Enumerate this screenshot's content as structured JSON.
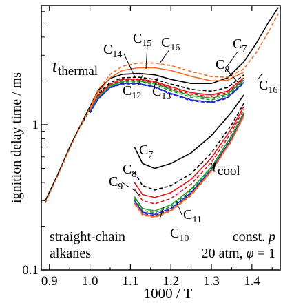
{
  "chart_data": {
    "type": "line",
    "xlabel": "1000 / T",
    "ylabel": "ignition delay time / ms",
    "xlim": [
      0.88,
      1.47
    ],
    "ylim": [
      0.1,
      6.6
    ],
    "yscale": "log",
    "x_ticks": [
      "0.9",
      "1.0",
      "1.1",
      "1.2",
      "1.3",
      "1.4"
    ],
    "y_ticks": [
      "0.1",
      "1"
    ],
    "grid": false,
    "annotations": {
      "thermal_label": "τ",
      "thermal_sub": "thermal",
      "cool_label": "τ",
      "cool_sub": "cool",
      "note_left_1": "straight-chain",
      "note_left_2": "alkanes",
      "note_right_1": "const. ",
      "note_right_1_var": "p",
      "note_right_2a": "20 atm, ",
      "note_right_2_phi": "φ",
      "note_right_2b": " = 1"
    },
    "series": [
      {
        "name": "C7",
        "color": "#000000",
        "dash": "solid",
        "thermal": [
          [
            0.89,
            0.3
          ],
          [
            0.92,
            0.45
          ],
          [
            0.95,
            0.7
          ],
          [
            0.98,
            1.03
          ],
          [
            1.0,
            1.33
          ],
          [
            1.02,
            1.72
          ],
          [
            1.05,
            2.08
          ],
          [
            1.08,
            2.22
          ],
          [
            1.12,
            2.25
          ],
          [
            1.16,
            2.2
          ],
          [
            1.2,
            2.05
          ],
          [
            1.25,
            1.92
          ],
          [
            1.3,
            1.92
          ],
          [
            1.34,
            2.1
          ],
          [
            1.38,
            2.7
          ],
          [
            1.41,
            3.6
          ],
          [
            1.44,
            5.0
          ],
          [
            1.465,
            6.4
          ]
        ],
        "cool": [
          [
            1.11,
            0.7
          ],
          [
            1.13,
            0.54
          ],
          [
            1.16,
            0.5
          ],
          [
            1.2,
            0.54
          ],
          [
            1.25,
            0.64
          ],
          [
            1.3,
            0.84
          ],
          [
            1.35,
            1.22
          ],
          [
            1.38,
            1.6
          ]
        ]
      },
      {
        "name": "C8",
        "color": "#000000",
        "dash": "dash",
        "thermal": [
          [
            0.97,
            0.9
          ],
          [
            1.0,
            1.27
          ],
          [
            1.02,
            1.62
          ],
          [
            1.05,
            1.95
          ],
          [
            1.08,
            2.1
          ],
          [
            1.12,
            2.12
          ],
          [
            1.16,
            2.05
          ],
          [
            1.2,
            1.9
          ],
          [
            1.25,
            1.75
          ],
          [
            1.3,
            1.7
          ],
          [
            1.34,
            1.8
          ],
          [
            1.38,
            2.2
          ]
        ],
        "cool": [
          [
            1.11,
            0.47
          ],
          [
            1.13,
            0.38
          ],
          [
            1.16,
            0.355
          ],
          [
            1.2,
            0.38
          ],
          [
            1.25,
            0.46
          ],
          [
            1.3,
            0.64
          ],
          [
            1.35,
            1.0
          ],
          [
            1.38,
            1.4
          ]
        ]
      },
      {
        "name": "C9",
        "color": "#e8121a",
        "dash": "solid",
        "thermal": [
          [
            1.0,
            1.25
          ],
          [
            1.02,
            1.58
          ],
          [
            1.05,
            1.9
          ],
          [
            1.08,
            2.05
          ],
          [
            1.12,
            2.06
          ],
          [
            1.16,
            1.98
          ],
          [
            1.2,
            1.82
          ],
          [
            1.25,
            1.66
          ],
          [
            1.3,
            1.6
          ],
          [
            1.34,
            1.7
          ],
          [
            1.38,
            2.1
          ]
        ],
        "cool": [
          [
            1.11,
            0.4
          ],
          [
            1.13,
            0.33
          ],
          [
            1.16,
            0.315
          ],
          [
            1.2,
            0.34
          ],
          [
            1.25,
            0.42
          ],
          [
            1.3,
            0.59
          ],
          [
            1.35,
            0.94
          ],
          [
            1.38,
            1.33
          ]
        ]
      },
      {
        "name": "C10",
        "color": "#e8121a",
        "dash": "dash",
        "thermal": [
          [
            1.0,
            1.24
          ],
          [
            1.02,
            1.56
          ],
          [
            1.05,
            1.88
          ],
          [
            1.08,
            2.02
          ],
          [
            1.12,
            2.03
          ],
          [
            1.16,
            1.95
          ],
          [
            1.2,
            1.78
          ],
          [
            1.25,
            1.62
          ],
          [
            1.3,
            1.56
          ],
          [
            1.34,
            1.66
          ],
          [
            1.38,
            2.05
          ]
        ],
        "cool": [
          [
            1.11,
            0.36
          ],
          [
            1.13,
            0.3
          ],
          [
            1.16,
            0.285
          ],
          [
            1.2,
            0.31
          ],
          [
            1.25,
            0.39
          ],
          [
            1.3,
            0.55
          ],
          [
            1.35,
            0.89
          ],
          [
            1.38,
            1.27
          ]
        ]
      },
      {
        "name": "C11",
        "color": "#2a9a2a",
        "dash": "solid",
        "thermal": [
          [
            1.0,
            1.23
          ],
          [
            1.02,
            1.54
          ],
          [
            1.05,
            1.85
          ],
          [
            1.08,
            1.99
          ],
          [
            1.12,
            2.0
          ],
          [
            1.16,
            1.92
          ],
          [
            1.2,
            1.75
          ],
          [
            1.25,
            1.58
          ],
          [
            1.3,
            1.52
          ],
          [
            1.34,
            1.62
          ],
          [
            1.38,
            2.02
          ]
        ],
        "cool": [
          [
            1.11,
            0.32
          ],
          [
            1.13,
            0.265
          ],
          [
            1.16,
            0.255
          ],
          [
            1.2,
            0.28
          ],
          [
            1.25,
            0.36
          ],
          [
            1.3,
            0.51
          ],
          [
            1.35,
            0.84
          ],
          [
            1.38,
            1.21
          ]
        ]
      },
      {
        "name": "C12",
        "color": "#2a9a2a",
        "dash": "dash",
        "thermal": [
          [
            1.0,
            1.22
          ],
          [
            1.02,
            1.52
          ],
          [
            1.05,
            1.83
          ],
          [
            1.08,
            1.96
          ],
          [
            1.12,
            1.97
          ],
          [
            1.16,
            1.88
          ],
          [
            1.2,
            1.71
          ],
          [
            1.25,
            1.54
          ],
          [
            1.3,
            1.48
          ],
          [
            1.34,
            1.58
          ],
          [
            1.38,
            1.98
          ]
        ],
        "cool": [
          [
            1.11,
            0.31
          ],
          [
            1.13,
            0.257
          ],
          [
            1.16,
            0.248
          ],
          [
            1.2,
            0.272
          ],
          [
            1.25,
            0.35
          ],
          [
            1.3,
            0.5
          ],
          [
            1.35,
            0.82
          ],
          [
            1.38,
            1.19
          ]
        ]
      },
      {
        "name": "C13",
        "color": "#1f2fd6",
        "dash": "solid",
        "thermal": [
          [
            1.0,
            1.21
          ],
          [
            1.02,
            1.5
          ],
          [
            1.05,
            1.8
          ],
          [
            1.08,
            1.92
          ],
          [
            1.12,
            1.92
          ],
          [
            1.16,
            1.82
          ],
          [
            1.2,
            1.64
          ],
          [
            1.25,
            1.48
          ],
          [
            1.3,
            1.43
          ],
          [
            1.34,
            1.54
          ],
          [
            1.38,
            1.95
          ]
        ],
        "cool": [
          [
            1.11,
            0.3
          ],
          [
            1.13,
            0.25
          ],
          [
            1.16,
            0.241
          ],
          [
            1.2,
            0.265
          ],
          [
            1.25,
            0.34
          ],
          [
            1.3,
            0.49
          ],
          [
            1.35,
            0.8
          ],
          [
            1.38,
            1.17
          ]
        ]
      },
      {
        "name": "C14",
        "color": "#1f2fd6",
        "dash": "dash",
        "thermal": [
          [
            1.0,
            1.2
          ],
          [
            1.02,
            1.49
          ],
          [
            1.05,
            1.79
          ],
          [
            1.08,
            1.9
          ],
          [
            1.12,
            1.9
          ],
          [
            1.16,
            1.8
          ],
          [
            1.2,
            1.62
          ],
          [
            1.25,
            1.46
          ],
          [
            1.3,
            1.41
          ],
          [
            1.34,
            1.52
          ],
          [
            1.38,
            1.93
          ]
        ],
        "cool": [
          [
            1.11,
            0.295
          ],
          [
            1.13,
            0.245
          ],
          [
            1.16,
            0.236
          ],
          [
            1.2,
            0.26
          ],
          [
            1.25,
            0.335
          ],
          [
            1.3,
            0.485
          ],
          [
            1.35,
            0.79
          ],
          [
            1.38,
            1.16
          ]
        ]
      },
      {
        "name": "C15",
        "color": "#f26b21",
        "dash": "solid",
        "thermal": [
          [
            1.0,
            1.27
          ],
          [
            1.02,
            1.66
          ],
          [
            1.05,
            2.1
          ],
          [
            1.08,
            2.36
          ],
          [
            1.12,
            2.46
          ],
          [
            1.16,
            2.46
          ],
          [
            1.2,
            2.36
          ],
          [
            1.25,
            2.15
          ],
          [
            1.3,
            2.0
          ],
          [
            1.34,
            2.02
          ],
          [
            1.38,
            2.3
          ]
        ],
        "cool": [
          [
            1.11,
            0.29
          ],
          [
            1.13,
            0.242
          ],
          [
            1.16,
            0.233
          ],
          [
            1.2,
            0.257
          ],
          [
            1.25,
            0.33
          ],
          [
            1.3,
            0.48
          ],
          [
            1.35,
            0.78
          ],
          [
            1.38,
            1.15
          ]
        ]
      },
      {
        "name": "C16",
        "color": "#f26b21",
        "dash": "dash",
        "thermal": [
          [
            0.89,
            0.29
          ],
          [
            0.92,
            0.44
          ],
          [
            0.95,
            0.68
          ],
          [
            0.98,
            1.02
          ],
          [
            1.0,
            1.3
          ],
          [
            1.02,
            1.73
          ],
          [
            1.05,
            2.22
          ],
          [
            1.08,
            2.52
          ],
          [
            1.12,
            2.65
          ],
          [
            1.16,
            2.65
          ],
          [
            1.2,
            2.55
          ],
          [
            1.25,
            2.32
          ],
          [
            1.3,
            2.14
          ],
          [
            1.34,
            2.12
          ],
          [
            1.38,
            2.42
          ],
          [
            1.41,
            3.1
          ],
          [
            1.44,
            4.3
          ],
          [
            1.465,
            5.8
          ]
        ],
        "cool": [
          [
            1.11,
            0.285
          ],
          [
            1.13,
            0.238
          ],
          [
            1.16,
            0.23
          ],
          [
            1.2,
            0.254
          ],
          [
            1.25,
            0.325
          ],
          [
            1.3,
            0.475
          ],
          [
            1.35,
            0.77
          ],
          [
            1.38,
            1.14
          ]
        ]
      }
    ],
    "curve_labels": [
      {
        "base": "C",
        "sub": "14"
      },
      {
        "base": "C",
        "sub": "15"
      },
      {
        "base": "C",
        "sub": "16"
      },
      {
        "base": "C",
        "sub": "7"
      },
      {
        "base": "C",
        "sub": "8"
      },
      {
        "base": "C",
        "sub": "12"
      },
      {
        "base": "C",
        "sub": "13"
      },
      {
        "base": "C",
        "sub": "16"
      },
      {
        "base": "C",
        "sub": "7"
      },
      {
        "base": "C",
        "sub": "8"
      },
      {
        "base": "C",
        "sub": "9"
      },
      {
        "base": "C",
        "sub": "11"
      },
      {
        "base": "C",
        "sub": "10"
      }
    ]
  }
}
